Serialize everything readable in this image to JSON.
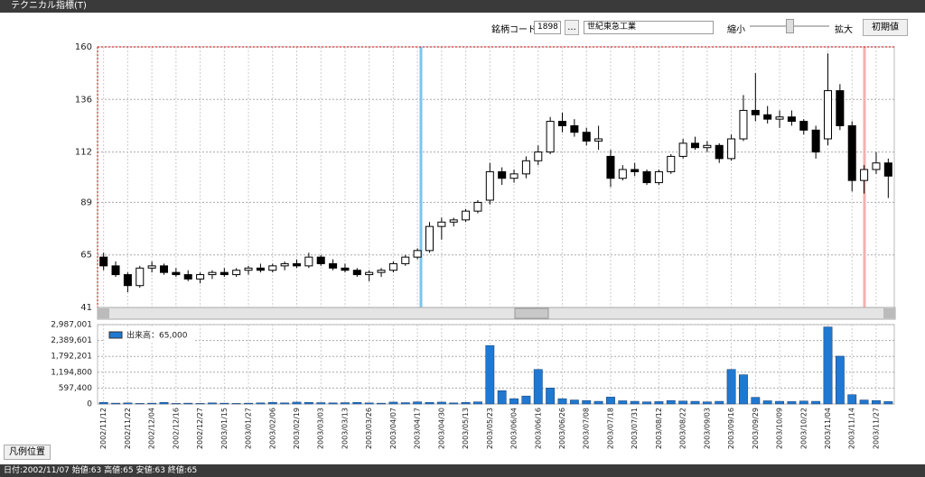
{
  "window_title": "テクニカル指標(T)",
  "toolbar": {
    "code_label": "銘柄コード:",
    "code": "1898",
    "browse": "...",
    "name": "世紀東急工業",
    "zoom_out": "縮小",
    "zoom_in": "拡大",
    "reset": "初期値"
  },
  "legend_button": "凡例位置",
  "status": "日付:2002/11/07 始値:63 高値:65 安値:63 終値:65",
  "chart_data": [
    {
      "type": "candlestick",
      "categories": [
        "2002/11/12",
        null,
        "2002/11/22",
        null,
        "2002/12/04",
        null,
        "2002/12/16",
        null,
        "2002/12/27",
        null,
        "2003/01/15",
        null,
        "2003/01/27",
        null,
        "2003/02/06",
        null,
        "2003/02/19",
        null,
        "2003/03/03",
        null,
        "2003/03/13",
        null,
        "2003/03/26",
        null,
        "2003/04/07",
        null,
        "2003/04/17",
        null,
        "2003/04/30",
        null,
        "2003/05/13",
        null,
        "2003/05/23",
        null,
        "2003/06/04",
        null,
        "2003/06/16",
        null,
        "2003/06/26",
        null,
        "2003/07/08",
        null,
        "2003/07/18",
        null,
        "2003/07/31",
        null,
        "2003/08/12",
        null,
        "2003/08/22",
        null,
        "2003/09/03",
        null,
        "2003/09/16",
        null,
        "2003/09/29",
        null,
        "2003/10/09",
        null,
        "2003/10/22",
        null,
        "2003/11/04",
        null,
        "2003/11/14",
        null,
        "2003/11/27",
        null
      ],
      "open": [
        64,
        60,
        56,
        51,
        59,
        60,
        57,
        56,
        54,
        56,
        57,
        56,
        58,
        59,
        58,
        60,
        61,
        60,
        64,
        61,
        59,
        58,
        56,
        57,
        58,
        61,
        64,
        67,
        78,
        80,
        81,
        85,
        90,
        103,
        100,
        102,
        108,
        112,
        126,
        124,
        121,
        117,
        110,
        100,
        104,
        103,
        98,
        103,
        110,
        116,
        114,
        115,
        109,
        118,
        131,
        129,
        127,
        128,
        126,
        122,
        118,
        140,
        124,
        99,
        104,
        107
      ],
      "high": [
        66,
        62,
        57,
        60,
        62,
        61,
        59,
        58,
        57,
        58,
        59,
        59,
        60,
        61,
        61,
        62,
        63,
        66,
        65,
        63,
        61,
        59,
        58,
        59,
        62,
        65,
        68,
        80,
        82,
        82,
        86,
        90,
        107,
        105,
        104,
        110,
        115,
        128,
        130,
        127,
        123,
        124,
        113,
        106,
        107,
        104,
        104,
        111,
        118,
        119,
        117,
        116,
        120,
        138,
        148,
        133,
        131,
        131,
        127,
        124,
        157,
        143,
        126,
        106,
        112,
        109
      ],
      "low": [
        58,
        55,
        48,
        50,
        57,
        56,
        55,
        53,
        52,
        54,
        55,
        55,
        56,
        57,
        57,
        58,
        59,
        59,
        60,
        58,
        57,
        55,
        53,
        55,
        57,
        60,
        63,
        66,
        72,
        78,
        80,
        84,
        88,
        97,
        98,
        100,
        106,
        111,
        121,
        119,
        115,
        113,
        96,
        99,
        101,
        97,
        97,
        102,
        109,
        113,
        112,
        107,
        108,
        117,
        126,
        125,
        123,
        124,
        120,
        109,
        115,
        122,
        94,
        93,
        102,
        91
      ],
      "close": [
        60,
        56,
        51,
        59,
        60,
        57,
        56,
        54,
        56,
        57,
        56,
        58,
        59,
        58,
        60,
        61,
        60,
        64,
        61,
        59,
        58,
        56,
        57,
        58,
        61,
        64,
        67,
        78,
        80,
        81,
        85,
        89,
        103,
        100,
        102,
        108,
        112,
        126,
        124,
        121,
        117,
        118,
        100,
        104,
        103,
        98,
        103,
        110,
        116,
        114,
        115,
        109,
        118,
        131,
        129,
        127,
        128,
        126,
        122,
        112,
        140,
        124,
        99,
        104,
        107,
        101
      ],
      "up_color": "#ffffff",
      "down_color": "#000000",
      "ylim": [
        41,
        160
      ],
      "yticks": [
        41,
        65,
        89,
        112,
        136,
        160
      ],
      "grid": true
    },
    {
      "type": "bar",
      "series": [
        {
          "name": "出来高：65,000",
          "color": "#1f78d1",
          "values": [
            60000,
            30000,
            40000,
            20000,
            30000,
            60000,
            20000,
            30000,
            20000,
            40000,
            30000,
            20000,
            30000,
            40000,
            60000,
            40000,
            70000,
            60000,
            50000,
            40000,
            50000,
            60000,
            40000,
            30000,
            70000,
            50000,
            80000,
            60000,
            70000,
            40000,
            60000,
            80000,
            2200000,
            500000,
            200000,
            300000,
            1300000,
            600000,
            200000,
            150000,
            130000,
            100000,
            260000,
            120000,
            100000,
            80000,
            90000,
            130000,
            110000,
            100000,
            80000,
            100000,
            1300000,
            1100000,
            250000,
            120000,
            100000,
            90000,
            110000,
            100000,
            2900000,
            1800000,
            350000,
            150000,
            130000,
            90000
          ]
        }
      ],
      "ylim": [
        0,
        2987001
      ],
      "yticks": [
        0,
        {
          "value": 597400,
          "label": "597,400"
        },
        {
          "value": 1194800,
          "label": "1,194,800"
        },
        {
          "value": 1792201,
          "label": "1,792,201"
        },
        {
          "value": 2389601,
          "label": "2,389,601"
        },
        {
          "value": 2987001,
          "label": "2,987,001"
        }
      ],
      "grid": true
    }
  ]
}
